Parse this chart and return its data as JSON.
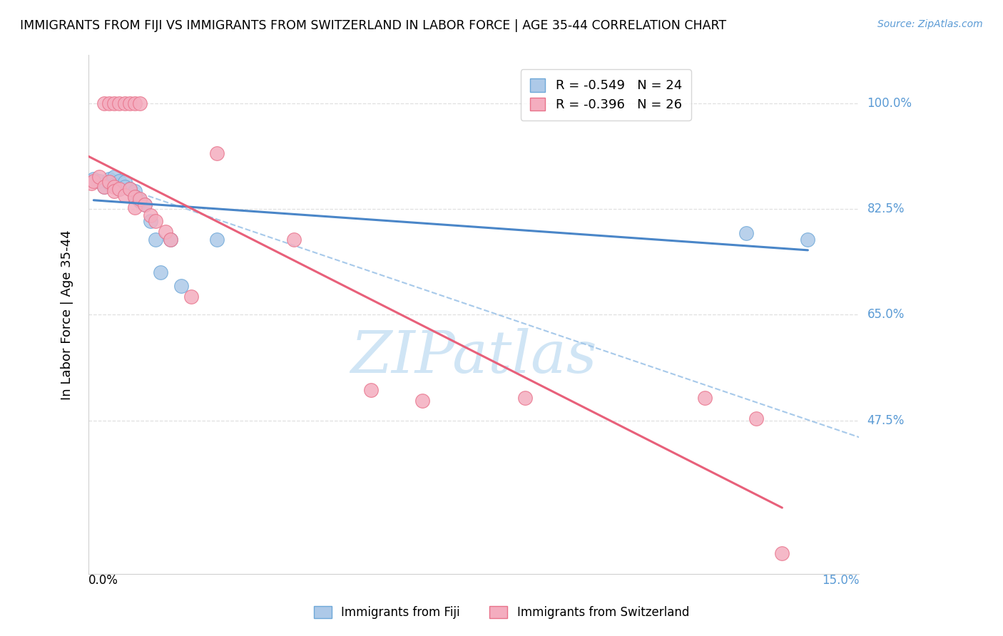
{
  "title": "IMMIGRANTS FROM FIJI VS IMMIGRANTS FROM SWITZERLAND IN LABOR FORCE | AGE 35-44 CORRELATION CHART",
  "source": "Source: ZipAtlas.com",
  "ylabel": "In Labor Force | Age 35-44",
  "xlim": [
    0.0,
    0.15
  ],
  "ylim": [
    0.22,
    1.08
  ],
  "ytick_values": [
    0.475,
    0.65,
    0.825,
    1.0
  ],
  "ytick_labels": [
    "47.5%",
    "65.0%",
    "82.5%",
    "100.0%"
  ],
  "fiji_R": "-0.549",
  "fiji_N": "24",
  "swiss_R": "-0.396",
  "swiss_N": "26",
  "fiji_color": "#adc9e8",
  "fiji_edge_color": "#6ea8d8",
  "swiss_color": "#f4adbf",
  "swiss_edge_color": "#e8728a",
  "fiji_line_color": "#4a86c8",
  "swiss_line_color": "#e8607a",
  "dash_line_color": "#9ec4e8",
  "watermark_color": "#d0e5f5",
  "grid_color": "#e0e0e0",
  "right_label_color": "#5b9bd5",
  "background_color": "#ffffff",
  "fiji_x": [
    0.001,
    0.002,
    0.003,
    0.004,
    0.004,
    0.005,
    0.005,
    0.006,
    0.006,
    0.007,
    0.007,
    0.008,
    0.009,
    0.009,
    0.01,
    0.011,
    0.012,
    0.013,
    0.014,
    0.016,
    0.018,
    0.025,
    0.128,
    0.14
  ],
  "fiji_y": [
    0.875,
    0.872,
    0.862,
    0.875,
    0.868,
    0.878,
    0.866,
    0.872,
    0.858,
    0.87,
    0.862,
    0.858,
    0.855,
    0.845,
    0.838,
    0.832,
    0.805,
    0.775,
    0.72,
    0.775,
    0.698,
    0.775,
    0.785,
    0.775
  ],
  "swiss_x": [
    0.0005,
    0.001,
    0.002,
    0.003,
    0.004,
    0.005,
    0.005,
    0.006,
    0.007,
    0.008,
    0.009,
    0.009,
    0.01,
    0.011,
    0.012,
    0.013,
    0.015,
    0.016,
    0.02,
    0.04,
    0.055,
    0.065,
    0.085,
    0.12,
    0.13,
    0.135
  ],
  "swiss_y": [
    0.868,
    0.872,
    0.878,
    0.862,
    0.87,
    0.862,
    0.855,
    0.858,
    0.848,
    0.858,
    0.845,
    0.828,
    0.842,
    0.832,
    0.815,
    0.805,
    0.788,
    0.775,
    0.68,
    0.775,
    0.525,
    0.508,
    0.512,
    0.512,
    0.478,
    0.255
  ],
  "top_swiss_x": [
    0.003,
    0.004,
    0.005,
    0.006,
    0.007,
    0.008,
    0.009,
    0.01
  ],
  "top_swiss_y": [
    1.0,
    1.0,
    1.0,
    1.0,
    1.0,
    1.0,
    1.0,
    1.0
  ],
  "outlier_swiss_x": [
    0.025
  ],
  "outlier_swiss_y": [
    0.918
  ]
}
